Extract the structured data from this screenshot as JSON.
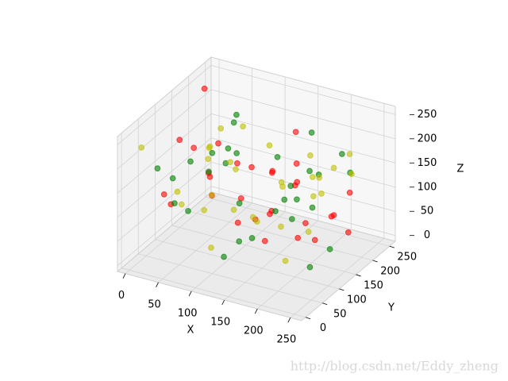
{
  "chart_data": {
    "type": "scatter3d",
    "xlabel": "X",
    "ylabel": "Y",
    "zlabel": "Z",
    "xlim": [
      -12,
      267
    ],
    "ylim": [
      -12,
      267
    ],
    "zlim": [
      -12,
      267
    ],
    "xticks": [
      0,
      50,
      100,
      150,
      200,
      250
    ],
    "yticks": [
      0,
      50,
      100,
      150,
      200,
      250
    ],
    "zticks": [
      0,
      50,
      100,
      150,
      200,
      250
    ],
    "grid": true,
    "alpha": 0.6,
    "series": [
      {
        "color": "#ff0000",
        "x": [
          12,
          45,
          88,
          130,
          176,
          220,
          250,
          33,
          67,
          101,
          145,
          190,
          235,
          20,
          58,
          99,
          160,
          205,
          240,
          75,
          115,
          170,
          228,
          8,
          50,
          140,
          185,
          255,
          92,
          210
        ],
        "y": [
          200,
          35,
          150,
          240,
          80,
          120,
          10,
          175,
          60,
          225,
          140,
          30,
          190,
          110,
          250,
          70,
          210,
          15,
          130,
          185,
          95,
          165,
          45,
          230,
          5,
          100,
          245,
          155,
          55,
          85
        ],
        "z": [
          250,
          120,
          30,
          180,
          210,
          60,
          140,
          90,
          230,
          15,
          160,
          100,
          40,
          200,
          75,
          245,
          20,
          170,
          110,
          55,
          195,
          135,
          220,
          10,
          160,
          85,
          25,
          150,
          190,
          235
        ]
      },
      {
        "color": "#008000",
        "x": [
          25,
          70,
          110,
          155,
          200,
          245,
          5,
          48,
          95,
          138,
          182,
          230,
          62,
          120,
          168,
          215,
          35,
          82,
          128,
          175,
          222,
          15,
          58,
          105,
          150,
          198,
          248,
          40,
          190,
          135
        ],
        "y": [
          80,
          190,
          20,
          130,
          240,
          55,
          165,
          225,
          100,
          10,
          185,
          145,
          60,
          205,
          35,
          115,
          250,
          150,
          75,
          220,
          25,
          105,
          180,
          40,
          250,
          95,
          170,
          5,
          125,
          215
        ],
        "z": [
          140,
          40,
          220,
          90,
          160,
          250,
          15,
          115,
          185,
          60,
          230,
          30,
          200,
          145,
          95,
          5,
          175,
          235,
          50,
          120,
          200,
          70,
          155,
          245,
          25,
          110,
          180,
          210,
          130,
          85
        ]
      },
      {
        "color": "#bfbf00",
        "x": [
          18,
          55,
          98,
          143,
          188,
          232,
          3,
          42,
          85,
          128,
          172,
          218,
          65,
          112,
          158,
          205,
          28,
          78,
          122,
          166,
          212,
          252,
          10,
          52,
          148,
          195,
          240,
          88,
          135,
          180
        ],
        "y": [
          120,
          230,
          45,
          175,
          95,
          200,
          30,
          140,
          250,
          65,
          210,
          110,
          15,
          160,
          235,
          50,
          185,
          90,
          5,
          125,
          245,
          70,
          215,
          170,
          20,
          150,
          100,
          195,
          35,
          255
        ],
        "z": [
          60,
          170,
          250,
          110,
          20,
          195,
          225,
          45,
          130,
          205,
          80,
          240,
          165,
          35,
          100,
          215,
          145,
          10,
          185,
          65,
          120,
          230,
          95,
          200,
          155,
          50,
          175,
          15,
          240,
          115
        ]
      }
    ],
    "watermark": "http://blog.csdn.net/Eddy_zheng"
  }
}
